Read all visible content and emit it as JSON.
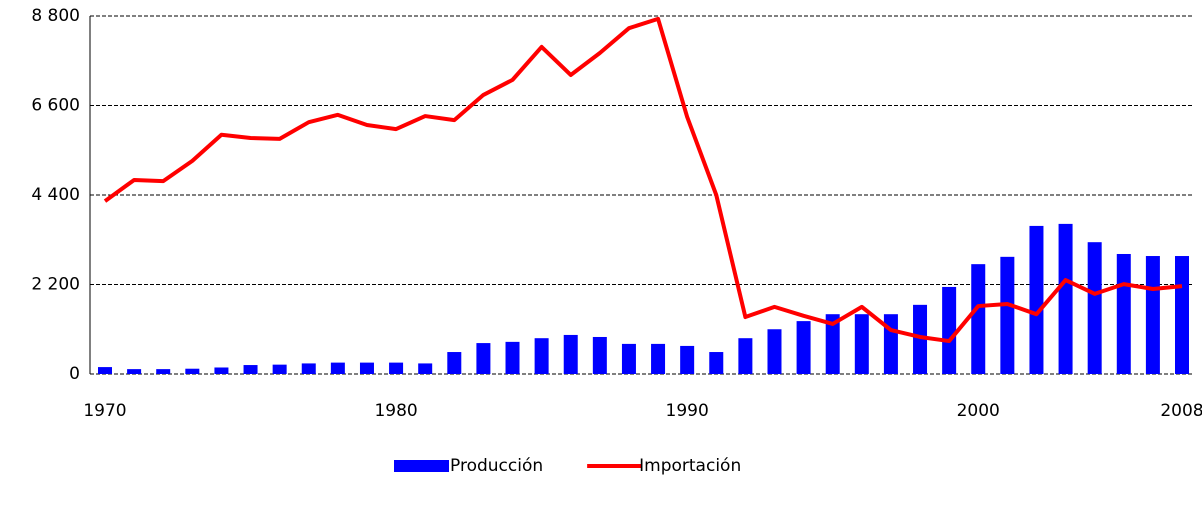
{
  "chart_data": {
    "type": "bar_line",
    "categories": [
      "1970",
      null,
      null,
      null,
      null,
      null,
      null,
      null,
      null,
      null,
      "1980",
      null,
      null,
      null,
      null,
      null,
      null,
      null,
      null,
      null,
      "1990",
      null,
      null,
      null,
      null,
      null,
      null,
      null,
      null,
      null,
      "2000",
      null,
      null,
      null,
      null,
      null,
      null,
      "2008"
    ],
    "series": [
      {
        "name": "Producción",
        "type": "bar",
        "color": "#0000ff",
        "values": [
          170,
          120,
          120,
          130,
          160,
          220,
          230,
          260,
          280,
          280,
          280,
          260,
          540,
          760,
          790,
          880,
          960,
          910,
          740,
          740,
          690,
          540,
          880,
          1100,
          1300,
          1470,
          1470,
          1470,
          1700,
          2140,
          2700,
          2880,
          3640,
          3690,
          3240,
          2950,
          2900,
          2900
        ]
      },
      {
        "name": "Importación",
        "type": "line",
        "color": "#ff0000",
        "values": [
          4250,
          4770,
          4740,
          5240,
          5880,
          5800,
          5780,
          6190,
          6370,
          6120,
          6020,
          6340,
          6240,
          6860,
          7230,
          8040,
          7350,
          7890,
          8500,
          8730,
          6320,
          4400,
          1400,
          1650,
          1430,
          1230,
          1650,
          1080,
          910,
          810,
          1670,
          1720,
          1470,
          2310,
          1970,
          2210,
          2090,
          2160
        ]
      }
    ],
    "ylim": [
      0,
      8800
    ],
    "yticks": [
      0,
      {
        "value": 2200,
        "label": "2 200"
      },
      {
        "value": 4400,
        "label": "4 400"
      },
      {
        "value": 6600,
        "label": "6 600"
      },
      {
        "value": 8800,
        "label": "8 800"
      }
    ],
    "grid": true,
    "legend": "bottom"
  }
}
